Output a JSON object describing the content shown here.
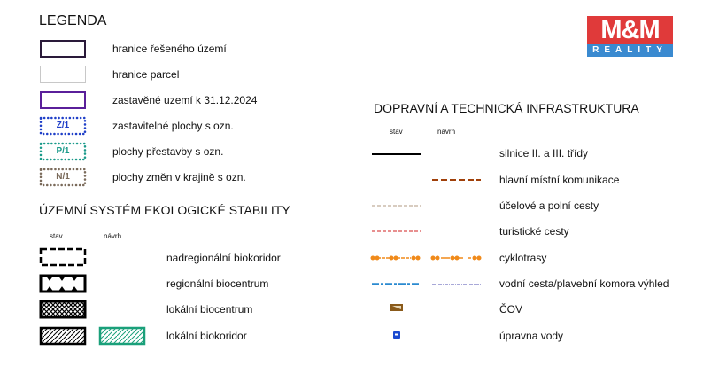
{
  "legend": {
    "title": "LEGENDA",
    "items": [
      {
        "label": "hranice řešeného území",
        "color": "#2a1a3a"
      },
      {
        "label": "hranice parcel",
        "color": "#c8c8c8"
      },
      {
        "label": "zastavěné uzemí k 31.12.2024",
        "color": "#5a1f9a"
      },
      {
        "label": "zastavitelné plochy s ozn.",
        "code": "Z/1",
        "color": "#1f3fc8"
      },
      {
        "label": "plochy přestavby s ozn.",
        "code": "P/1",
        "color": "#1a9a8a"
      },
      {
        "label": "plochy změn v krajině s ozn.",
        "code": "N/1",
        "color": "#7a6a5a"
      }
    ]
  },
  "uses": {
    "title": "ÚZEMNÍ SYSTÉM EKOLOGICKÉ STABILITY",
    "col_stav": "stav",
    "col_navrh": "návrh",
    "items": [
      {
        "label": "nadregionální biokoridor"
      },
      {
        "label": "regionální biocentrum"
      },
      {
        "label": "lokální biocentrum"
      },
      {
        "label": "lokální biokoridor",
        "proposal_color": "#1aa07a"
      }
    ]
  },
  "infra": {
    "title": "DOPRAVNÍ A TECHNICKÁ INFRASTRUKTURA",
    "col_stav": "stav",
    "col_navrh": "návrh",
    "items": [
      {
        "label": "silnice II. a III. třídy",
        "color": "#000000"
      },
      {
        "label": "hlavní místní komunikace",
        "color": "#a0400a"
      },
      {
        "label": "účelové a polní cesty",
        "color": "#b09a80"
      },
      {
        "label": "turistické cesty",
        "color": "#d02020"
      },
      {
        "label": "cyklotrasy",
        "color": "#f08a1a"
      },
      {
        "label": "vodní cesta/plavební komora výhled",
        "color": "#2a8ad0",
        "proposal_color": "#a8a8d8"
      },
      {
        "label": "ČOV",
        "color": "#8a5a1a"
      },
      {
        "label": "úpravna vody",
        "color": "#1a4ad0"
      }
    ]
  },
  "logo": {
    "top": "M&M",
    "bottom": "REALITY",
    "red": "#e03a3a",
    "blue": "#3a8ad0"
  }
}
